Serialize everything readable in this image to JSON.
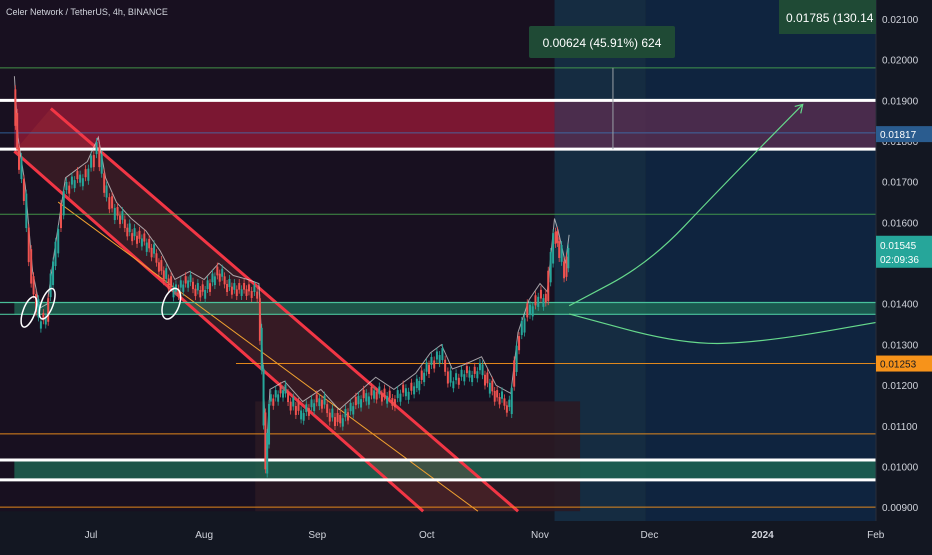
{
  "header": {
    "symbol_title": "Celer Network / TetherUS, 4h, BINANCE"
  },
  "colors": {
    "background": "#131722",
    "axis_text": "#d1d4dc",
    "bull_candle": "#26a69a",
    "bear_candle": "#ef5350",
    "channel_red": "#f23645",
    "zone_red": "#9c1a38",
    "zone_green": "#1f6b55",
    "white_level": "#ffffff",
    "orange_level": "#f7931a",
    "green_level": "#4caf50",
    "current_price_label": "#26a69a",
    "blue_level_label": "#2a5c8f",
    "orange_label": "#f7931a",
    "measure_box": "#1f4a35",
    "forecast_box": "#1e3a5f"
  },
  "chart_data": {
    "type": "candlestick",
    "symbol": "Celer Network / TetherUS",
    "interval": "4h",
    "exchange": "BINANCE",
    "ylim": [
      0.0089,
      0.0212
    ],
    "y_ticks": [
      "0.00900",
      "0.01000",
      "0.01100",
      "0.01200",
      "0.01300",
      "0.01400",
      "0.01500",
      "0.01600",
      "0.01700",
      "0.01800",
      "0.01900",
      "0.02000",
      "0.02100"
    ],
    "x_ticks": [
      "Jul",
      "Aug",
      "Sep",
      "Oct",
      "Nov",
      "Dec",
      "2024",
      "Feb"
    ],
    "price_path": [
      [
        "2023-06-10",
        0.0193
      ],
      [
        "2023-06-11",
        0.0178
      ],
      [
        "2023-06-13",
        0.0166
      ],
      [
        "2023-06-15",
        0.0145
      ],
      [
        "2023-06-17",
        0.0136
      ],
      [
        "2023-06-19",
        0.0137
      ],
      [
        "2023-06-21",
        0.015
      ],
      [
        "2023-06-24",
        0.0168
      ],
      [
        "2023-06-27",
        0.017
      ],
      [
        "2023-06-30",
        0.0172
      ],
      [
        "2023-07-03",
        0.0178
      ],
      [
        "2023-07-05",
        0.0168
      ],
      [
        "2023-07-08",
        0.0162
      ],
      [
        "2023-07-12",
        0.0158
      ],
      [
        "2023-07-16",
        0.0155
      ],
      [
        "2023-07-20",
        0.015
      ],
      [
        "2023-07-24",
        0.0143
      ],
      [
        "2023-07-28",
        0.0145
      ],
      [
        "2023-08-01",
        0.0143
      ],
      [
        "2023-08-05",
        0.0147
      ],
      [
        "2023-08-09",
        0.0144
      ],
      [
        "2023-08-13",
        0.0143
      ],
      [
        "2023-08-16",
        0.0142
      ],
      [
        "2023-08-17",
        0.0124
      ],
      [
        "2023-08-18",
        0.0099
      ],
      [
        "2023-08-19",
        0.0116
      ],
      [
        "2023-08-23",
        0.0118
      ],
      [
        "2023-08-28",
        0.0113
      ],
      [
        "2023-09-02",
        0.0116
      ],
      [
        "2023-09-07",
        0.0111
      ],
      [
        "2023-09-12",
        0.0115
      ],
      [
        "2023-09-17",
        0.0119
      ],
      [
        "2023-09-22",
        0.0116
      ],
      [
        "2023-09-28",
        0.012
      ],
      [
        "2023-10-02",
        0.0125
      ],
      [
        "2023-10-05",
        0.0127
      ],
      [
        "2023-10-08",
        0.0121
      ],
      [
        "2023-10-11",
        0.0122
      ],
      [
        "2023-10-16",
        0.0124
      ],
      [
        "2023-10-20",
        0.0117
      ],
      [
        "2023-10-24",
        0.0115
      ],
      [
        "2023-10-26",
        0.013
      ],
      [
        "2023-10-29",
        0.0138
      ],
      [
        "2023-11-01",
        0.0142
      ],
      [
        "2023-11-03",
        0.014
      ],
      [
        "2023-11-05",
        0.0158
      ],
      [
        "2023-11-06",
        0.0155
      ],
      [
        "2023-11-08",
        0.0147
      ],
      [
        "2023-11-09",
        0.0154
      ]
    ],
    "price_labels": [
      {
        "label": "0.01545",
        "countdown": "02:09:36",
        "value": 0.01545,
        "kind": "current"
      },
      {
        "label": "0.01817",
        "value": 0.01817,
        "kind": "level"
      },
      {
        "label": "0.01253",
        "value": 0.01253,
        "kind": "orange-level"
      }
    ],
    "annotations": {
      "measure_label": "0.00624 (45.91%) 624",
      "forecast_label": "0.01785 (130.14"
    },
    "levels": [
      {
        "value": 0.019,
        "kind": "white"
      },
      {
        "value": 0.0178,
        "kind": "white"
      },
      {
        "value": 0.01403,
        "kind": "zone-top"
      },
      {
        "value": 0.01374,
        "kind": "zone-bottom"
      },
      {
        "value": 0.01016,
        "kind": "white"
      },
      {
        "value": 0.00967,
        "kind": "white"
      },
      {
        "value": 0.01253,
        "kind": "orange"
      },
      {
        "value": 0.0108,
        "kind": "orange"
      },
      {
        "value": 0.009,
        "kind": "orange"
      },
      {
        "value": 0.0198,
        "kind": "green"
      },
      {
        "value": 0.0162,
        "kind": "green"
      },
      {
        "value": 0.0182,
        "kind": "blue"
      }
    ],
    "zones": [
      {
        "from": 0.0178,
        "to": 0.019,
        "color": "red",
        "start": "2023-06-10",
        "end": "2023-11-05"
      },
      {
        "from": 0.0178,
        "to": 0.019,
        "color": "purple",
        "start": "2023-11-05",
        "end": "2024-02-05"
      },
      {
        "from": 0.01374,
        "to": 0.01403,
        "color": "green",
        "start": "2023-06-10",
        "end": "2024-02-05"
      },
      {
        "from": 0.00967,
        "to": 0.01016,
        "color": "green",
        "start": "2023-06-10",
        "end": "2024-02-05"
      }
    ],
    "channel": {
      "upper": [
        [
          "2023-06-20",
          0.0188
        ],
        [
          "2023-10-26",
          0.0089
        ]
      ],
      "lower": [
        [
          "2023-06-10",
          0.01775
        ],
        [
          "2023-09-30",
          0.0089
        ]
      ],
      "mid": [
        [
          "2023-06-22",
          0.0165
        ],
        [
          "2023-10-15",
          0.0089
        ]
      ]
    },
    "forecast_up": [
      [
        "2023-11-09",
        0.01395
      ],
      [
        "2023-12-01",
        0.015
      ],
      [
        "2023-12-20",
        0.0168
      ],
      [
        "2024-01-12",
        0.0189
      ]
    ],
    "forecast_down": [
      [
        "2023-11-09",
        0.01375
      ],
      [
        "2023-12-10",
        0.013
      ],
      [
        "2024-01-01",
        0.01305
      ],
      [
        "2024-02-08",
        0.01365
      ]
    ]
  }
}
